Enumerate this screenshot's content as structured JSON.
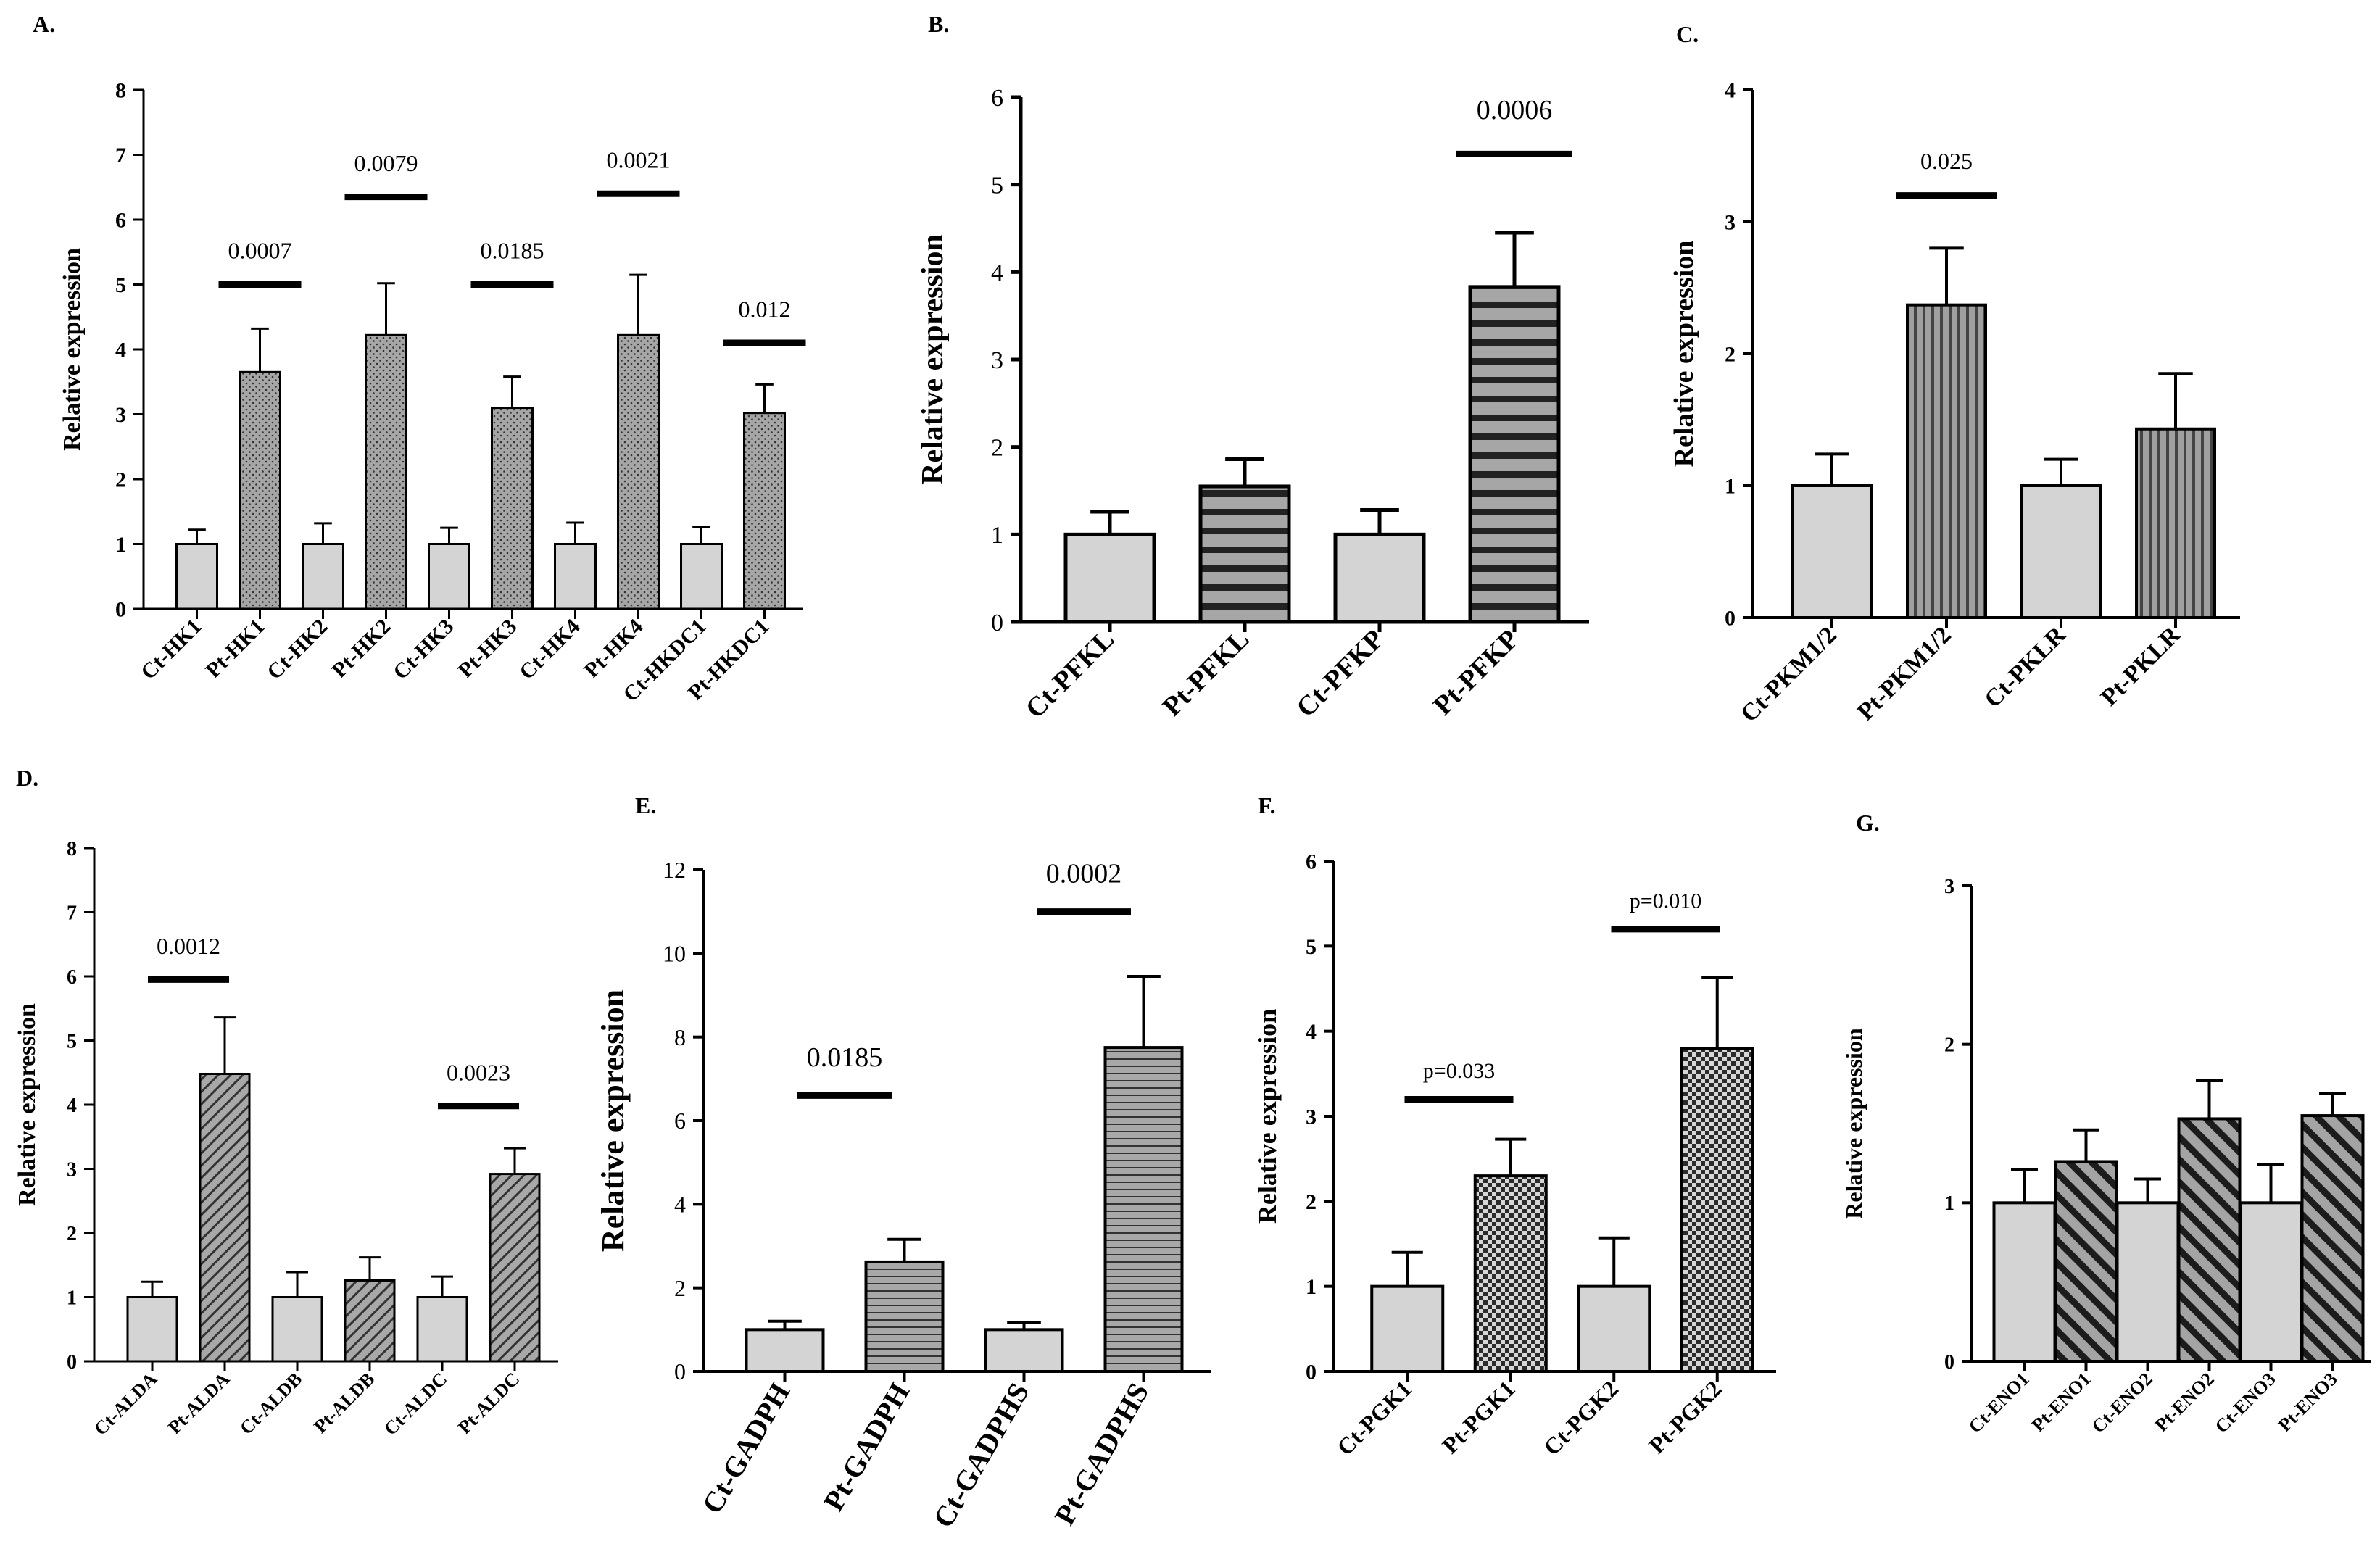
{
  "chart_data": [
    {
      "panel": "A.",
      "type": "bar",
      "ylabel": "Relative expression",
      "ylim": [
        0,
        8
      ],
      "yticks": [
        "0",
        "1",
        "2",
        "3",
        "4",
        "5",
        "6",
        "7",
        "8"
      ],
      "categories": [
        "Ct-HK1",
        "Pt-HK1",
        "Ct-HK2",
        "Pt-HK2",
        "Ct-HK3",
        "Pt-HK3",
        "Ct-HK4",
        "Pt-HK4",
        "Ct-HKDC1",
        "Pt-HKDC1"
      ],
      "values": [
        1,
        3.65,
        1,
        4.22,
        1,
        3.1,
        1,
        4.22,
        1,
        3.02
      ],
      "errors": [
        0.22,
        0.67,
        0.32,
        0.8,
        0.25,
        0.48,
        0.33,
        0.93,
        0.26,
        0.44
      ],
      "annotations": [
        {
          "text": "0.0007",
          "bar": 1,
          "y": 5.0,
          "ty": 5.4
        },
        {
          "text": "0.0079",
          "bar": 3,
          "y": 6.35,
          "ty": 6.75
        },
        {
          "text": "0.0185",
          "bar": 5,
          "y": 5.0,
          "ty": 5.4
        },
        {
          "text": "0.0021",
          "bar": 7,
          "y": 6.4,
          "ty": 6.8
        },
        {
          "text": "0.012",
          "bar": 9,
          "y": 4.1,
          "ty": 4.5
        }
      ]
    },
    {
      "panel": "B.",
      "type": "bar",
      "ylabel": "Relative expression",
      "ylim": [
        0,
        6
      ],
      "yticks": [
        "0",
        "1",
        "2",
        "3",
        "4",
        "5",
        "6"
      ],
      "categories": [
        "Ct-PFKL",
        "Pt-PFKL",
        "Ct-PFKP",
        "Pt-PFKP"
      ],
      "values": [
        1,
        1.55,
        1,
        3.83
      ],
      "errors": [
        0.26,
        0.31,
        0.28,
        0.62
      ],
      "annotations": [
        {
          "text": "0.0006",
          "bar": 3,
          "y": 5.35,
          "ty": 5.75
        }
      ]
    },
    {
      "panel": "C.",
      "type": "bar",
      "ylabel": "Relative expression",
      "ylim": [
        0,
        4
      ],
      "yticks": [
        "0",
        "1",
        "2",
        "3",
        "4"
      ],
      "categories": [
        "Ct-PKM1/2",
        "Pt-PKM1/2",
        "Ct-PKLR",
        "Pt-PKLR"
      ],
      "values": [
        1,
        2.37,
        1,
        1.43
      ],
      "errors": [
        0.24,
        0.43,
        0.2,
        0.42
      ],
      "annotations": [
        {
          "text": "0.025",
          "bar": 1,
          "y": 3.2,
          "ty": 3.4
        }
      ]
    },
    {
      "panel": "D.",
      "type": "bar",
      "ylabel": "Relative expression",
      "ylim": [
        0,
        8
      ],
      "yticks": [
        "0",
        "1",
        "2",
        "3",
        "4",
        "5",
        "6",
        "7",
        "8"
      ],
      "categories": [
        "Ct-ALDA",
        "Pt-ALDA",
        "Ct-ALDB",
        "Pt-ALDB",
        "Ct-ALDC",
        "Pt-ALDC"
      ],
      "values": [
        1,
        4.48,
        1,
        1.26,
        1,
        2.92
      ],
      "errors": [
        0.24,
        0.88,
        0.39,
        0.36,
        0.32,
        0.4
      ],
      "annotations": [
        {
          "text": "0.0012",
          "bar": 0.5,
          "y": 5.95,
          "ty": 6.35
        },
        {
          "text": "0.0023",
          "bar": 4.5,
          "y": 3.98,
          "ty": 4.38
        }
      ]
    },
    {
      "panel": "E.",
      "type": "bar",
      "ylabel": "Relative expression",
      "ylim": [
        0,
        12
      ],
      "yticks": [
        "0",
        "2",
        "4",
        "6",
        "8",
        "10",
        "12"
      ],
      "categories": [
        "Ct-GADPH",
        "Pt-GADPH",
        "Ct-GADPHS",
        "Pt-GADPHS"
      ],
      "values": [
        1,
        2.62,
        1,
        7.75
      ],
      "errors": [
        0.2,
        0.54,
        0.18,
        1.7
      ],
      "annotations": [
        {
          "text": "0.0185",
          "bar": 0.5,
          "y": 6.6,
          "ty": 7.3
        },
        {
          "text": "0.0002",
          "bar": 2.5,
          "y": 11.0,
          "ty": 11.7
        }
      ]
    },
    {
      "panel": "F.",
      "type": "bar",
      "ylabel": "Relative expression",
      "ylim": [
        0,
        6
      ],
      "yticks": [
        "0",
        "1",
        "2",
        "3",
        "4",
        "5",
        "6"
      ],
      "categories": [
        "Ct-PGK1",
        "Pt-PGK1",
        "Ct-PGK2",
        "Pt-PGK2"
      ],
      "values": [
        1,
        2.3,
        1,
        3.8
      ],
      "errors": [
        0.4,
        0.43,
        0.57,
        0.83
      ],
      "annotations": [
        {
          "text": "p=0.033",
          "bar": 0.5,
          "y": 3.2,
          "ty": 3.45
        },
        {
          "text": "p=0.010",
          "bar": 2.5,
          "y": 5.2,
          "ty": 5.45
        }
      ]
    },
    {
      "panel": "G.",
      "type": "bar",
      "ylabel": "Relative expression",
      "ylim": [
        0,
        3
      ],
      "yticks": [
        "0",
        "1",
        "2",
        "3"
      ],
      "categories": [
        "Ct-ENO1",
        "Pt-ENO1",
        "Ct-ENO2",
        "Pt-ENO2",
        "Ct-ENO3",
        "Pt-ENO3"
      ],
      "values": [
        1,
        1.26,
        1,
        1.53,
        1,
        1.55
      ],
      "errors": [
        0.21,
        0.2,
        0.15,
        0.24,
        0.24,
        0.14
      ],
      "annotations": []
    }
  ],
  "colors": {
    "control_fill": "#d4d4d4",
    "treated_fill": "#9a9a9a",
    "axis": "#000000"
  }
}
